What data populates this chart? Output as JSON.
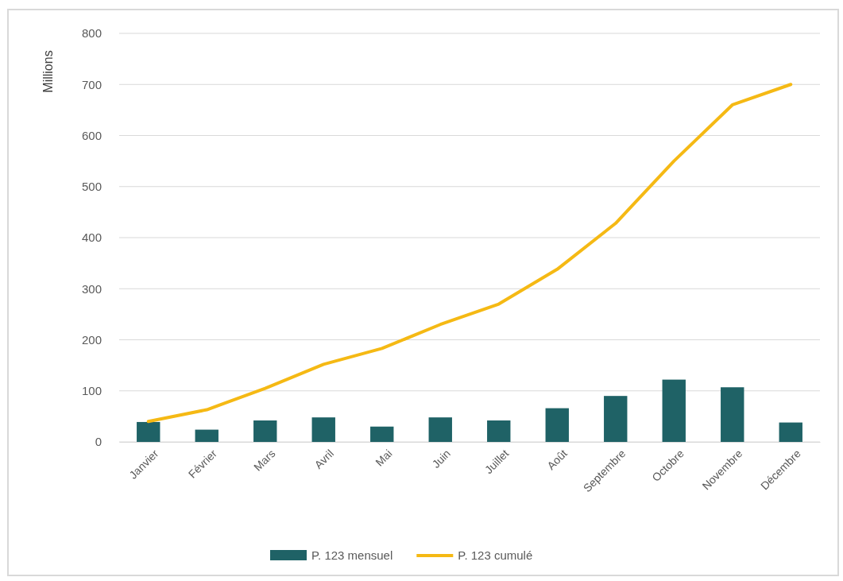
{
  "chart_data": {
    "type": "bar",
    "ylabel": "Millions",
    "categories": [
      "Janvier",
      "Février",
      "Mars",
      "Avril",
      "Mai",
      "Juin",
      "Juillet",
      "Août",
      "Septembre",
      "Octobre",
      "Novembre",
      "Décembre"
    ],
    "series": [
      {
        "name": "P. 123 mensuel",
        "color": "#1f6266",
        "values": [
          39,
          24,
          42,
          48,
          30,
          48,
          42,
          66,
          90,
          122,
          107,
          38
        ]
      },
      {
        "name": "P. 123 cumulé",
        "type": "line",
        "color": "#f5b914",
        "values": [
          40,
          63,
          105,
          152,
          183,
          230,
          270,
          338,
          428,
          550,
          660,
          700
        ]
      }
    ],
    "ylim": [
      0,
      800
    ],
    "yticks": [
      0,
      100,
      200,
      300,
      400,
      500,
      600,
      700,
      800
    ],
    "grid": "y",
    "legend": "bottom",
    "marker": "none",
    "line_style": "solid"
  }
}
